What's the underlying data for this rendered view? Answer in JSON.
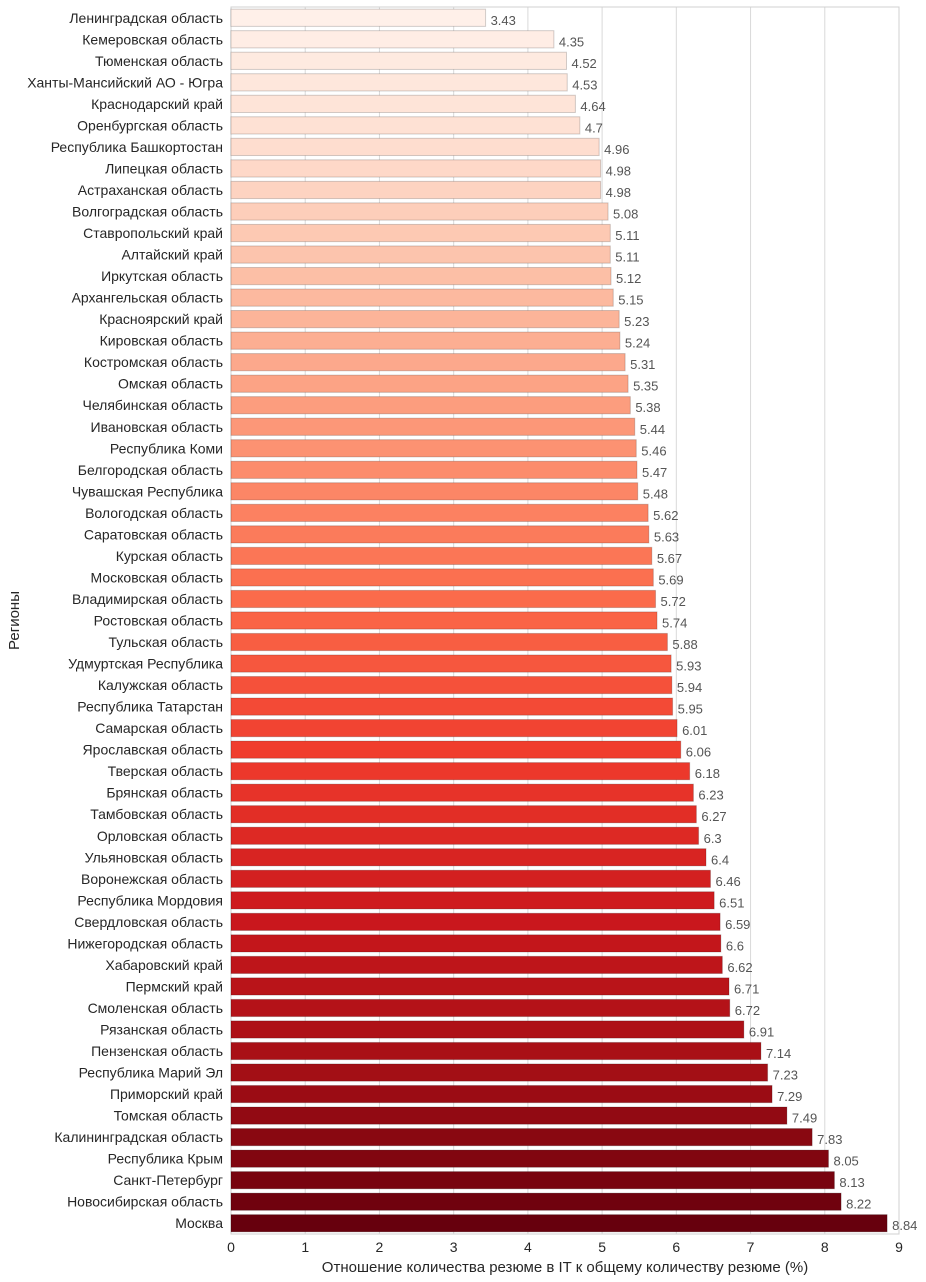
{
  "chart_data": {
    "type": "bar",
    "orientation": "horizontal",
    "title": "",
    "xlabel": "Отношение количества резюме в IT к общему количеству резюме (%)",
    "ylabel": "Регионы",
    "xlim": [
      0,
      9
    ],
    "xticks": [
      0,
      1,
      2,
      3,
      4,
      5,
      6,
      7,
      8,
      9
    ],
    "grid": "vertical",
    "colormap": "Reds",
    "categories": [
      "Ленинградская область",
      "Кемеровская область",
      "Тюменская область",
      "Ханты-Мансийский АО - Югра",
      "Краснодарский край",
      "Оренбургская область",
      "Республика Башкортостан",
      "Липецкая область",
      "Астраханская область",
      "Волгоградская область",
      "Ставропольский край",
      "Алтайский край",
      "Иркутская область",
      "Архангельская область",
      "Красноярский край",
      "Кировская область",
      "Костромская область",
      "Омская область",
      "Челябинская область",
      "Ивановская область",
      "Республика Коми",
      "Белгородская область",
      "Чувашская Республика",
      "Вологодская область",
      "Саратовская область",
      "Курская область",
      "Московская область",
      "Владимирская область",
      "Ростовская область",
      "Тульская область",
      "Удмуртская Республика",
      "Калужская область",
      "Республика Татарстан",
      "Самарская область",
      "Ярославская область",
      "Тверская область",
      "Брянская область",
      "Тамбовская область",
      "Орловская область",
      "Ульяновская область",
      "Воронежская область",
      "Республика Мордовия",
      "Свердловская область",
      "Нижегородская область",
      "Хабаровский край",
      "Пермский край",
      "Смоленская область",
      "Рязанская область",
      "Пензенская область",
      "Республика Марий Эл",
      "Приморский край",
      "Томская область",
      "Калининградская область",
      "Республика Крым",
      "Санкт-Петербург",
      "Новосибирская область",
      "Москва"
    ],
    "values": [
      3.43,
      4.35,
      4.52,
      4.53,
      4.64,
      4.7,
      4.96,
      4.98,
      4.98,
      5.08,
      5.11,
      5.11,
      5.12,
      5.15,
      5.23,
      5.24,
      5.31,
      5.35,
      5.38,
      5.44,
      5.46,
      5.47,
      5.48,
      5.62,
      5.63,
      5.67,
      5.69,
      5.72,
      5.74,
      5.88,
      5.93,
      5.94,
      5.95,
      6.01,
      6.06,
      6.18,
      6.23,
      6.27,
      6.3,
      6.4,
      6.46,
      6.51,
      6.59,
      6.6,
      6.62,
      6.71,
      6.72,
      6.91,
      7.14,
      7.23,
      7.29,
      7.49,
      7.83,
      8.05,
      8.13,
      8.22,
      8.84
    ],
    "value_labels": [
      "3.43",
      "4.35",
      "4.52",
      "4.53",
      "4.64",
      "4.7",
      "4.96",
      "4.98",
      "4.98",
      "5.08",
      "5.11",
      "5.11",
      "5.12",
      "5.15",
      "5.23",
      "5.24",
      "5.31",
      "5.35",
      "5.38",
      "5.44",
      "5.46",
      "5.47",
      "5.48",
      "5.62",
      "5.63",
      "5.67",
      "5.69",
      "5.72",
      "5.74",
      "5.88",
      "5.93",
      "5.94",
      "5.95",
      "6.01",
      "6.06",
      "6.18",
      "6.23",
      "6.27",
      "6.3",
      "6.4",
      "6.46",
      "6.51",
      "6.59",
      "6.6",
      "6.62",
      "6.71",
      "6.72",
      "6.91",
      "7.14",
      "7.23",
      "7.29",
      "7.49",
      "7.83",
      "8.05",
      "8.13",
      "8.22",
      "8.84"
    ]
  }
}
